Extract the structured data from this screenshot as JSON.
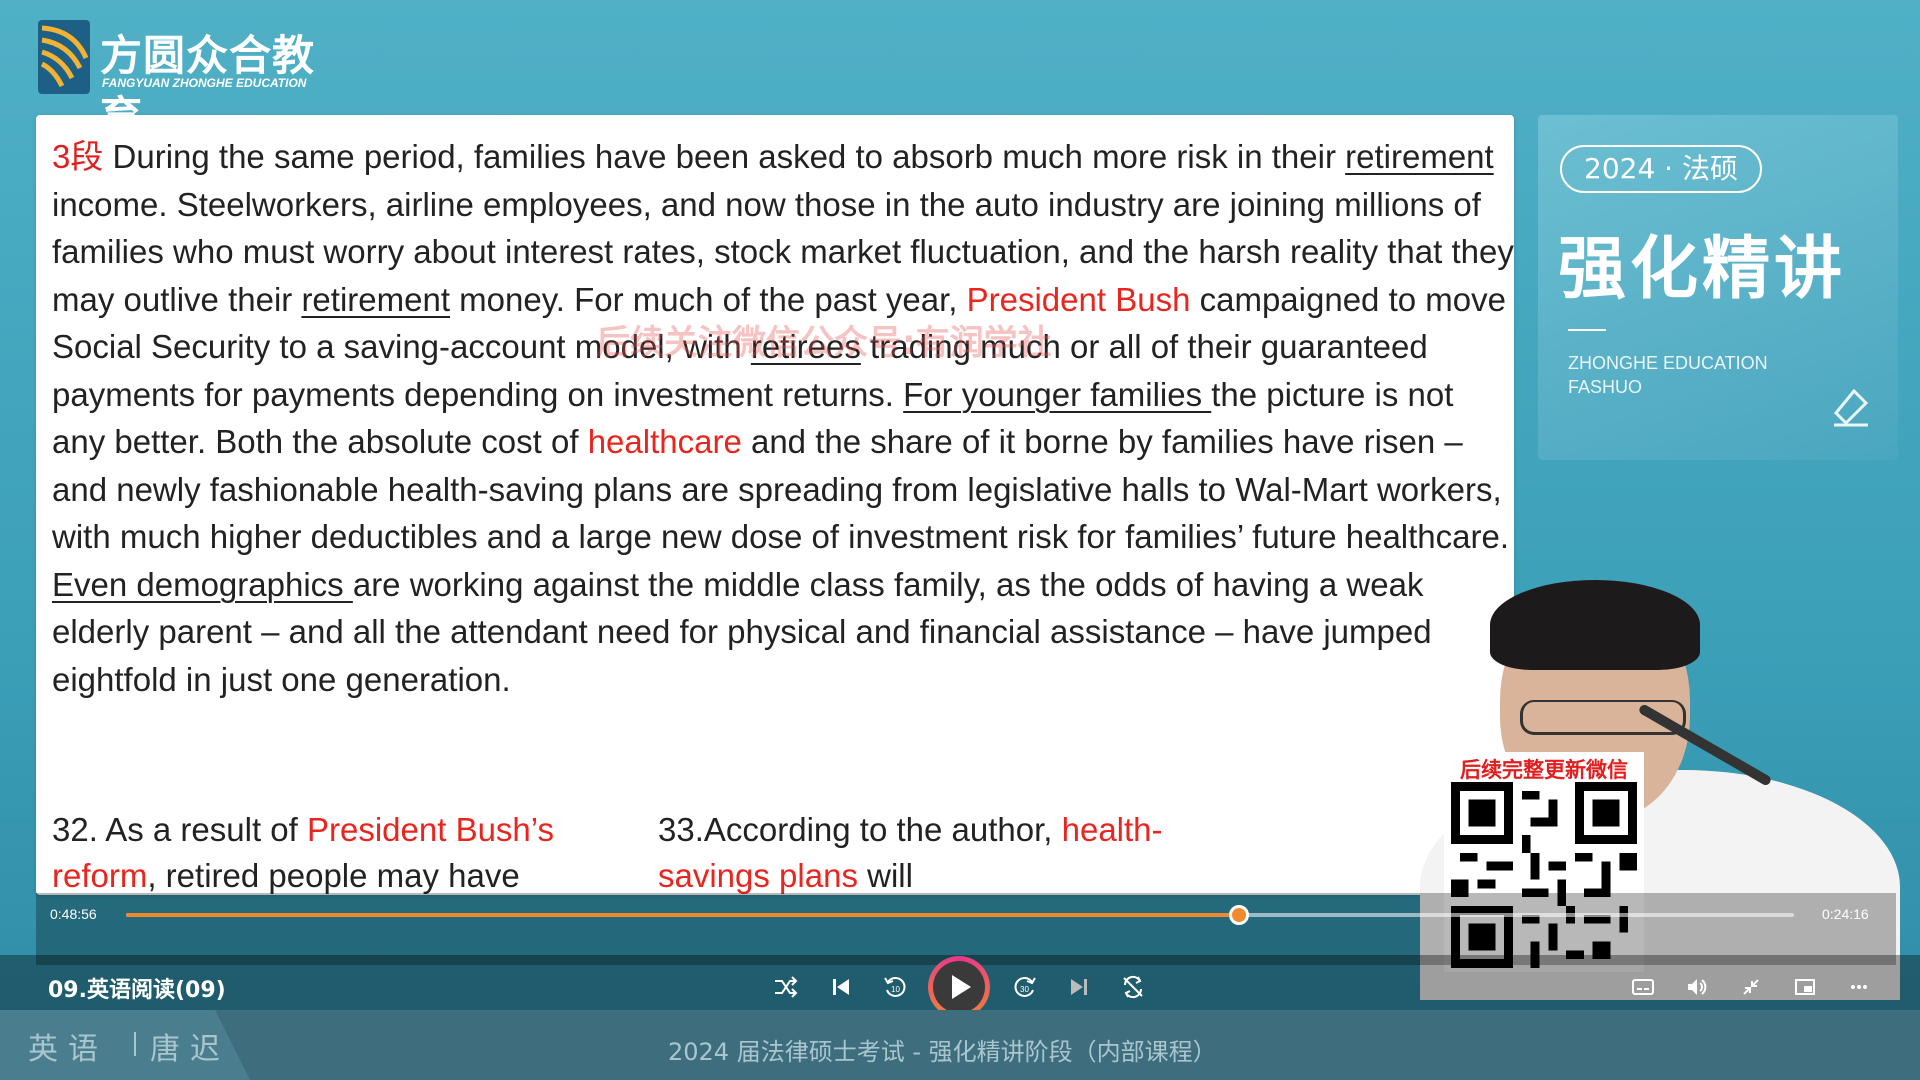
{
  "brand": {
    "name_cn": "方圆众合教育",
    "name_en": "FANGYUAN ZHONGHE EDUCATION"
  },
  "slide": {
    "paragraph_tag": "3段",
    "watermark": "后续关注微信公众号:有润学社",
    "passage": {
      "s1": " During the same period, families have been asked to absorb much more risk in their ",
      "w_retirement1": "retirement",
      "s2": " income. Steelworkers, airline employees, and now those in the auto industry are joining millions of families who must worry about interest rates, stock market fluctuation, and the harsh reality that they may outlive their ",
      "w_retirement2": "retirement",
      "s3": " money. For much of the past year, ",
      "w_president_bush": "President Bush",
      "s4": " campaigned to move Social Security to a saving-account model, with ",
      "w_retirees": "retirees",
      "s5": " trading much or all of their guaranteed payments for payments depending on investment returns. ",
      "w_younger": "For younger families ",
      "s6": "the picture is not any better. Both the absolute cost of ",
      "w_healthcare": "healthcare",
      "s7": " and the share of it borne by families have risen – and newly fashionable health-saving plans are spreading from legislative halls to Wal-Mart workers, with much higher deductibles and a large new dose of investment risk for families’ future healthcare. ",
      "w_even": "Even demographics ",
      "s8": "are working against the middle class family, as the odds of having a weak elderly parent – and all the attendant need for physical and financial assistance – have jumped eightfold in just one generation."
    },
    "q32": {
      "prefix": "32.  As a result of ",
      "red1": "President Bush’s reform",
      "suffix": ", retired people may have"
    },
    "q33": {
      "prefix": "33.According to the author, ",
      "red1": "health-savings plans",
      "suffix": " will"
    }
  },
  "course_card": {
    "year_tag": "2024 · 法硕",
    "title": "强化精讲",
    "subtitle": "ZHONGHE EDUCATION FASHUO"
  },
  "qr": {
    "label": "后续完整更新微信"
  },
  "player": {
    "current_time": "0:48:56",
    "remaining_time": "0:24:16",
    "progress": 0.667,
    "lesson_title": "09.英语阅读(09)",
    "accent": "#f08a2e"
  },
  "footer": {
    "subject": "英语",
    "teacher": "唐迟",
    "course": "2024 届法律硕士考试 - 强化精讲阶段（内部课程）"
  }
}
